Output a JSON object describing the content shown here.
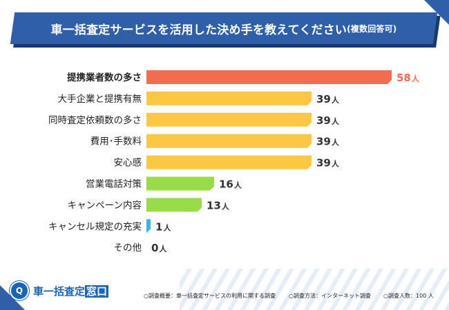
{
  "title": "車一括査定サービスを活用した決め手を教えてください",
  "title_note": "(複数回答可)",
  "logo": {
    "main": "車一括査定",
    "highlight": "窓口"
  },
  "footnotes": [
    "○調査概要：車一括査定サービスの利用に関する調査",
    "○調査方法：インターネット調査",
    "○調査人数：100 人"
  ],
  "colors": {
    "header": "#2f5fa8",
    "top_bar": "#f26d4f",
    "mid_bar": "#fcc844",
    "low_bar": "#98dc4a",
    "min_bar": "#3ab3e6",
    "top_value": "#f26d4f",
    "value": "#333333"
  },
  "chart_data": {
    "type": "bar",
    "orientation": "horizontal",
    "unit": "人",
    "categories": [
      "提携業者数の多さ",
      "大手企業と提携有無",
      "同時査定依頼数の多さ",
      "費用･手数料",
      "安心感",
      "営業電話対策",
      "キャンペーン内容",
      "キャンセル規定の充実",
      "その他"
    ],
    "values": [
      58,
      39,
      39,
      39,
      39,
      16,
      13,
      1,
      0
    ],
    "bar_colors": [
      "#f26d4f",
      "#fcc844",
      "#fcc844",
      "#fcc844",
      "#fcc844",
      "#98dc4a",
      "#98dc4a",
      "#3ab3e6",
      "#3ab3e6"
    ],
    "highlight_index": 0,
    "xlim": [
      0,
      58
    ]
  }
}
